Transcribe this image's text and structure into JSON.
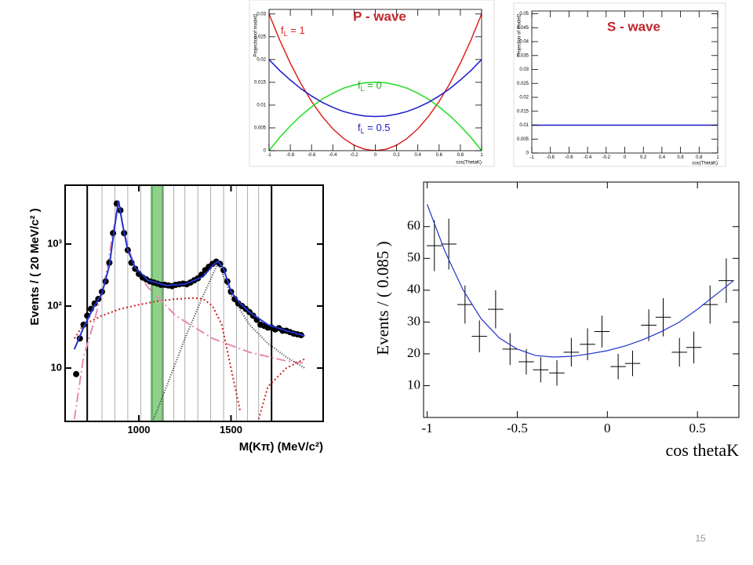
{
  "page_number": "15",
  "chart_data": [
    {
      "type": "line",
      "title": "P - wave",
      "ylabel": "Projection of model2",
      "xlabel": "cos(ThetaK)",
      "xlim": [
        -1,
        1
      ],
      "ylim": [
        0,
        0.031
      ],
      "xticks": [
        -1,
        -0.8,
        -0.6,
        -0.4,
        -0.2,
        0,
        0.2,
        0.4,
        0.6,
        0.8,
        1
      ],
      "yticks": [
        0,
        0.005,
        0.01,
        0.015,
        0.02,
        0.025,
        0.03
      ],
      "annotations": [
        {
          "main": "f",
          "sub": "L",
          "rest": " = 1"
        },
        {
          "main": "f",
          "sub": "L",
          "rest": " = 0"
        },
        {
          "main": "f",
          "sub": "L",
          "rest": " = 0.5"
        }
      ],
      "series": [
        {
          "color": "#dd2222",
          "mode": "line",
          "x": [
            -1,
            -0.9,
            -0.8,
            -0.7,
            -0.6,
            -0.5,
            -0.4,
            -0.3,
            -0.2,
            -0.1,
            0,
            0.1,
            0.2,
            0.3,
            0.4,
            0.5,
            0.6,
            0.7,
            0.8,
            0.9,
            1
          ],
          "values": [
            0.03,
            0.0243,
            0.0192,
            0.0147,
            0.0108,
            0.0075,
            0.0048,
            0.0027,
            0.0012,
            0.0003,
            0,
            0.0003,
            0.0012,
            0.0027,
            0.0048,
            0.0075,
            0.0108,
            0.0147,
            0.0192,
            0.0243,
            0.03
          ]
        },
        {
          "color": "#22dd22",
          "mode": "line",
          "x": [
            -1,
            -0.9,
            -0.8,
            -0.7,
            -0.6,
            -0.5,
            -0.4,
            -0.3,
            -0.2,
            -0.1,
            0,
            0.1,
            0.2,
            0.3,
            0.4,
            0.5,
            0.6,
            0.7,
            0.8,
            0.9,
            1
          ],
          "values": [
            0,
            0.0029,
            0.0054,
            0.0077,
            0.0096,
            0.0113,
            0.0126,
            0.0137,
            0.0144,
            0.0149,
            0.015,
            0.0149,
            0.0144,
            0.0137,
            0.0126,
            0.0113,
            0.0096,
            0.0077,
            0.0054,
            0.0029,
            0
          ]
        },
        {
          "color": "#1a1acc",
          "mode": "line",
          "x": [
            -1,
            -0.9,
            -0.8,
            -0.7,
            -0.6,
            -0.5,
            -0.4,
            -0.3,
            -0.2,
            -0.1,
            0,
            0.1,
            0.2,
            0.3,
            0.4,
            0.5,
            0.6,
            0.7,
            0.8,
            0.9,
            1
          ],
          "values": [
            0.02,
            0.0176,
            0.0155,
            0.0136,
            0.012,
            0.0106,
            0.0095,
            0.0086,
            0.008,
            0.0076,
            0.0075,
            0.0076,
            0.008,
            0.0086,
            0.0095,
            0.0106,
            0.012,
            0.0136,
            0.0155,
            0.0176,
            0.02
          ]
        }
      ]
    },
    {
      "type": "line",
      "title": "S - wave",
      "ylabel": "Projection of model2",
      "xlabel": "cos(ThetaK)",
      "xlim": [
        -1,
        1
      ],
      "ylim": [
        0,
        0.051
      ],
      "xticks": [
        -1,
        -0.8,
        -0.6,
        -0.4,
        -0.2,
        0,
        0.2,
        0.4,
        0.6,
        0.8,
        1
      ],
      "yticks": [
        0,
        0.005,
        0.01,
        0.015,
        0.02,
        0.025,
        0.03,
        0.035,
        0.04,
        0.045,
        0.05
      ],
      "series": [
        {
          "color": "#1a1acc",
          "mode": "line",
          "x": [
            -1,
            1
          ],
          "values": [
            0.01,
            0.01
          ]
        }
      ]
    },
    {
      "type": "line",
      "ylabel": "Events / ( 20 MeV/c² )",
      "xlabel": "M(Kπ) (MeV/c²)",
      "log_y": true,
      "xlim": [
        600,
        2000
      ],
      "ylim": [
        1.38,
        8900
      ],
      "xticks": [
        1000,
        1500
      ],
      "yticks": [
        10,
        {
          "value": 100,
          "label": "10²"
        },
        {
          "value": 1000,
          "label": "10³"
        }
      ],
      "bin_edges": [
        800,
        870,
        940,
        1010,
        1070,
        1130,
        1190,
        1250,
        1320,
        1390,
        1460,
        1530,
        1590,
        1650
      ],
      "window_edges": [
        720,
        1720
      ],
      "band": [
        1070,
        1130
      ],
      "band_color": "#8fd18a",
      "series": [
        {
          "color": "#cc2222",
          "mode": "line",
          "dash": "2,3",
          "x": [
            650,
            700,
            800,
            900,
            1000,
            1100,
            1200,
            1300,
            1350,
            1400,
            1450,
            1500,
            1550,
            1600,
            1650,
            1700,
            1800,
            1900
          ],
          "values": [
            30,
            50,
            70,
            90,
            105,
            120,
            130,
            135,
            130,
            100,
            50,
            10,
            2,
            null,
            1.5,
            5,
            10,
            14
          ]
        },
        {
          "color": "#e88ab4",
          "mode": "line",
          "dash": "12,4,2,4",
          "x": [
            650,
            700,
            760,
            820,
            860,
            890,
            920,
            980,
            1050,
            1200,
            1400,
            1600,
            1800,
            1900
          ],
          "values": [
            1.5,
            15,
            60,
            300,
            1500,
            5000,
            1500,
            400,
            200,
            70,
            30,
            18,
            13,
            12
          ]
        },
        {
          "color": "#333333",
          "mode": "line",
          "dash": "1,2",
          "x": [
            1080,
            1150,
            1250,
            1350,
            1430,
            1500,
            1600,
            1700,
            1800,
            1900
          ],
          "values": [
            1.5,
            5,
            30,
            150,
            500,
            150,
            50,
            25,
            15,
            10
          ]
        },
        {
          "color": "#000000",
          "mode": "markers",
          "x": [
            660,
            680,
            700,
            720,
            740,
            760,
            780,
            800,
            820,
            840,
            860,
            880,
            900,
            920,
            940,
            960,
            980,
            1000,
            1020,
            1040,
            1060,
            1080,
            1100,
            1120,
            1140,
            1160,
            1180,
            1200,
            1220,
            1240,
            1260,
            1280,
            1300,
            1320,
            1340,
            1360,
            1380,
            1400,
            1420,
            1440,
            1460,
            1480,
            1500,
            1520,
            1540,
            1560,
            1580,
            1600,
            1620,
            1640,
            1660,
            1680,
            1700,
            1720,
            1740,
            1760,
            1780,
            1800,
            1820,
            1840,
            1860,
            1880
          ],
          "values": [
            8,
            30,
            50,
            70,
            90,
            110,
            130,
            170,
            250,
            500,
            1500,
            4500,
            3500,
            1500,
            800,
            500,
            400,
            330,
            290,
            270,
            250,
            240,
            230,
            220,
            220,
            215,
            210,
            220,
            225,
            230,
            225,
            240,
            260,
            280,
            320,
            380,
            430,
            480,
            520,
            480,
            380,
            250,
            170,
            130,
            110,
            100,
            90,
            80,
            70,
            60,
            50,
            48,
            45,
            45,
            42,
            44,
            40,
            40,
            38,
            36,
            35,
            34
          ]
        },
        {
          "color": "#2233cc",
          "mode": "line",
          "x": [
            650,
            700,
            750,
            800,
            840,
            870,
            890,
            910,
            940,
            980,
            1050,
            1150,
            1250,
            1350,
            1400,
            1430,
            1460,
            1500,
            1550,
            1600,
            1700,
            1800,
            1900
          ],
          "values": [
            20,
            45,
            90,
            160,
            450,
            2000,
            5000,
            2200,
            800,
            420,
            260,
            215,
            225,
            300,
            450,
            530,
            400,
            170,
            110,
            80,
            50,
            40,
            33
          ]
        }
      ]
    },
    {
      "type": "scatter",
      "ylabel": "Events / ( 0.085 )",
      "xlabel": "cos thetaK",
      "xlim": [
        -1.02,
        0.73
      ],
      "ylim": [
        0,
        74
      ],
      "xticks": [
        -1,
        -0.5,
        0,
        0.5
      ],
      "yticks": [
        10,
        20,
        30,
        40,
        50,
        60
      ],
      "series": [
        {
          "color": "#000000",
          "mode": "errorbar",
          "xerror": 0.0425,
          "x": [
            -0.96,
            -0.88,
            -0.79,
            -0.71,
            -0.62,
            -0.54,
            -0.45,
            -0.37,
            -0.28,
            -0.2,
            -0.11,
            -0.03,
            0.06,
            0.14,
            0.23,
            0.31,
            0.4,
            0.48,
            0.57,
            0.66
          ],
          "values": [
            54,
            54.5,
            35.5,
            25.5,
            34,
            21.5,
            17.5,
            15,
            14,
            20.5,
            23,
            27,
            16,
            17,
            29,
            31.5,
            20.5,
            22,
            35.5,
            43
          ],
          "errors": [
            8,
            8,
            6,
            5,
            6,
            5,
            4,
            4,
            4,
            4.5,
            5,
            5,
            4,
            4,
            5,
            6,
            4.5,
            5,
            6,
            7
          ]
        },
        {
          "color": "#2233cc",
          "mode": "line",
          "x": [
            -1,
            -0.9,
            -0.8,
            -0.7,
            -0.6,
            -0.5,
            -0.4,
            -0.3,
            -0.2,
            -0.1,
            0,
            0.1,
            0.2,
            0.3,
            0.4,
            0.5,
            0.6,
            0.7
          ],
          "values": [
            67,
            52,
            40,
            31,
            25,
            21.5,
            19.5,
            19,
            19.2,
            20,
            21,
            22.5,
            24.5,
            27,
            30,
            34,
            38.5,
            43
          ]
        }
      ]
    }
  ]
}
